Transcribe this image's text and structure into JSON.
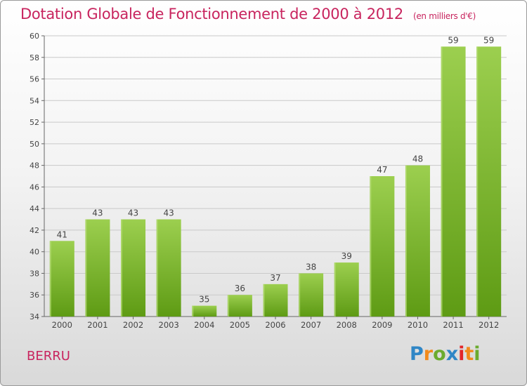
{
  "title": "Dotation Globale de Fonctionnement de 2000 à 2012",
  "subtitle": "(en milliers d'€)",
  "location": "BERRU",
  "logo": {
    "text": "Proxiti",
    "letters": [
      "P",
      "r",
      "o",
      "x",
      "i",
      "t",
      "i"
    ],
    "letter_colors": [
      "#2f86c6",
      "#f28a1b",
      "#6bab2e",
      "#2f86c6",
      "#e2262a",
      "#f28a1b",
      "#6bab2e"
    ]
  },
  "colors": {
    "accent": "#c8245e",
    "bar_light": "#9ccf4f",
    "bar_dark": "#5e9b14",
    "grid": "#c9c9c9"
  },
  "chart_data": {
    "type": "bar",
    "categories": [
      "2000",
      "2001",
      "2002",
      "2003",
      "2004",
      "2005",
      "2006",
      "2007",
      "2008",
      "2009",
      "2010",
      "2011",
      "2012"
    ],
    "values": [
      41,
      43,
      43,
      43,
      35,
      36,
      37,
      38,
      39,
      47,
      48,
      59,
      59
    ],
    "ylim": [
      34,
      60
    ],
    "yticks": [
      34,
      36,
      38,
      40,
      42,
      44,
      46,
      48,
      50,
      52,
      54,
      56,
      58,
      60
    ],
    "grid": true,
    "xlabel": "",
    "ylabel": ""
  }
}
